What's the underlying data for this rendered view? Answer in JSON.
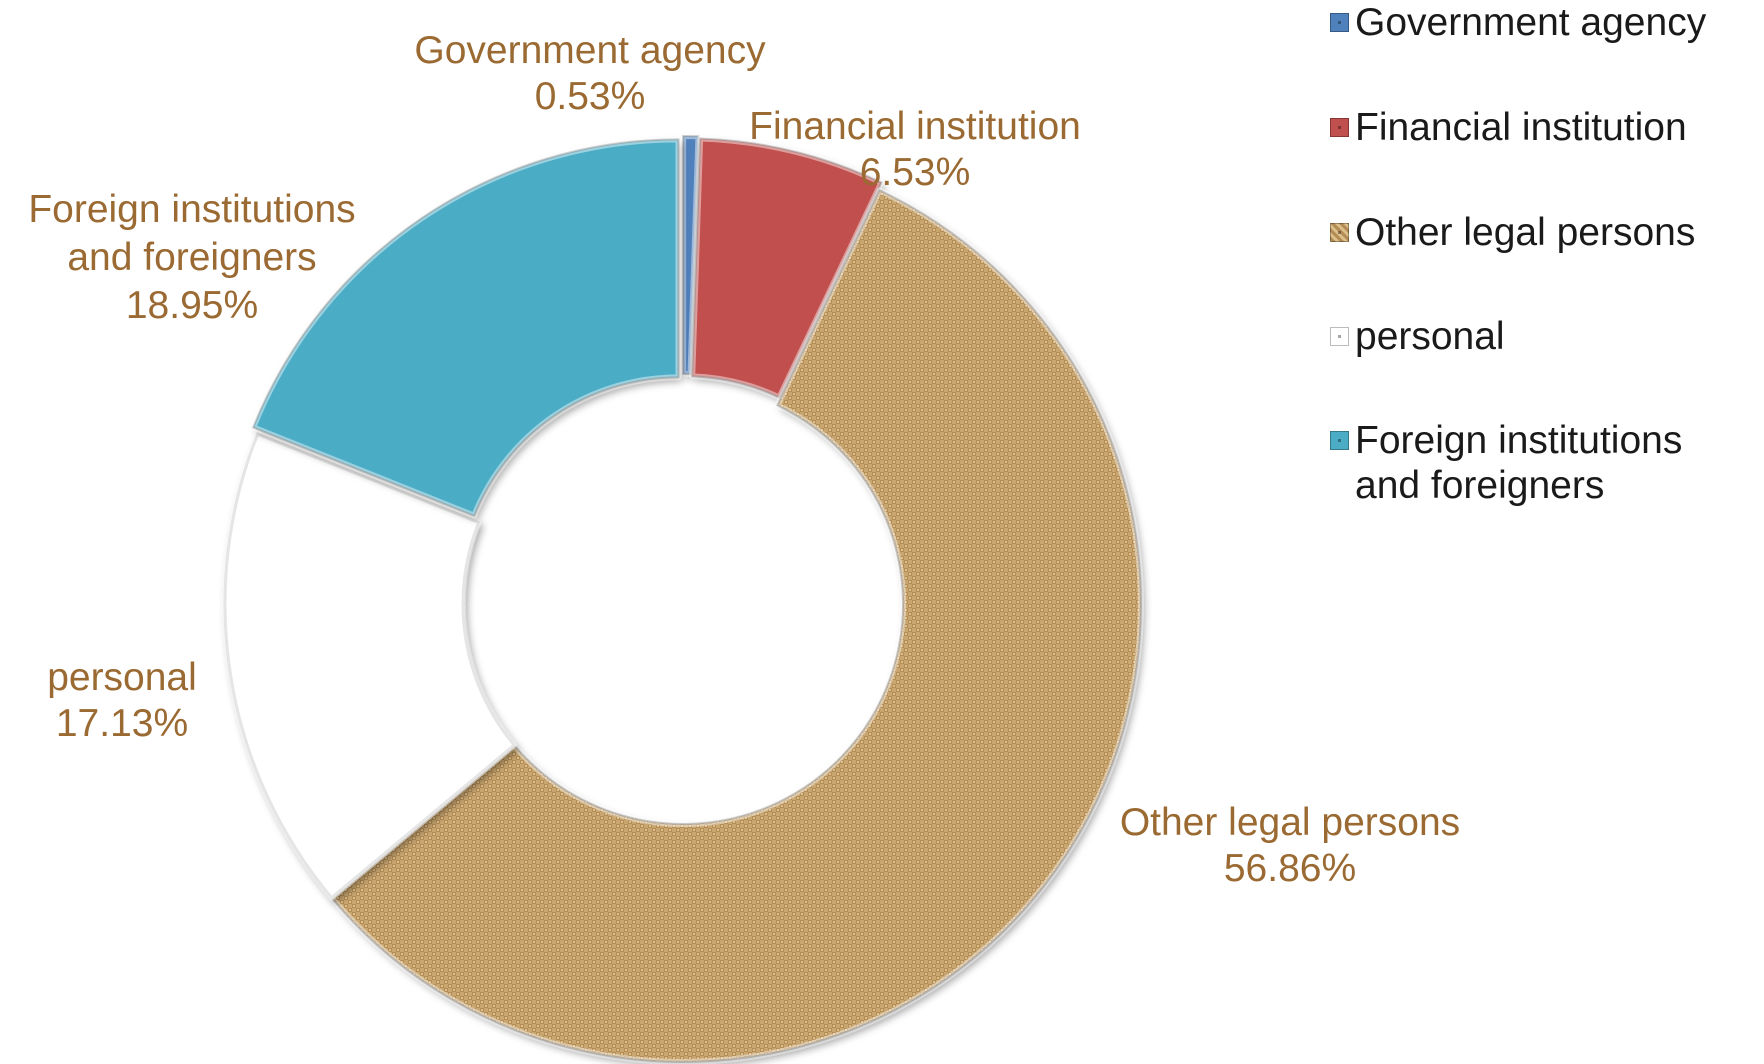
{
  "chart_data": {
    "type": "pie",
    "subtype": "donut",
    "categories": [
      "Government agency",
      "Financial institution",
      "Other legal persons",
      "personal",
      "Foreign institutions and foreigners"
    ],
    "values": [
      0.53,
      6.53,
      56.86,
      17.13,
      18.95
    ],
    "labels": [
      "0.53%",
      "6.53%",
      "56.86%",
      "17.13%",
      "18.95%"
    ],
    "colors": [
      "#4f81bd",
      "#c0504d",
      "#c8a46e",
      "#ffffff",
      "#4bacc6"
    ],
    "data_label_color": "#9a6a32",
    "legend_position": "top-right",
    "legend": [
      "Government agency",
      "Financial institution",
      "Other legal persons",
      "personal",
      "Foreign institutions\nand foreigners"
    ]
  }
}
